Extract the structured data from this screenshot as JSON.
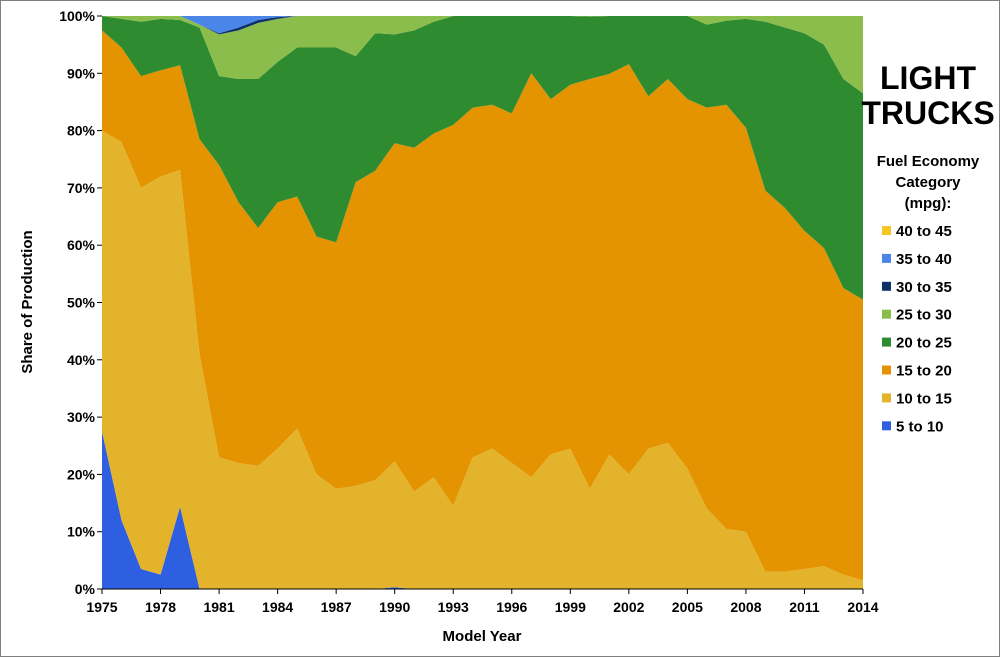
{
  "chart_data": {
    "type": "area",
    "stacked": "percent",
    "title": "LIGHT TRUCKS",
    "xlabel": "Model Year",
    "ylabel": "Share of Production",
    "legend_title": "Fuel Economy Category (mpg):",
    "legend_position": "right",
    "ylim": [
      0,
      100
    ],
    "xlim": [
      1975,
      2014
    ],
    "y_ticks": [
      "0%",
      "10%",
      "20%",
      "30%",
      "40%",
      "50%",
      "60%",
      "70%",
      "80%",
      "90%",
      "100%"
    ],
    "x_ticks": [
      "1975",
      "1978",
      "1981",
      "1984",
      "1987",
      "1990",
      "1993",
      "1996",
      "1999",
      "2002",
      "2005",
      "2008",
      "2011",
      "2014"
    ],
    "x": [
      1975,
      1976,
      1977,
      1978,
      1979,
      1980,
      1981,
      1982,
      1983,
      1984,
      1985,
      1986,
      1987,
      1988,
      1989,
      1990,
      1991,
      1992,
      1993,
      1994,
      1995,
      1996,
      1997,
      1998,
      1999,
      2000,
      2001,
      2002,
      2003,
      2004,
      2005,
      2006,
      2007,
      2008,
      2009,
      2010,
      2011,
      2012,
      2013,
      2014
    ],
    "series": [
      {
        "name": "5 to 10",
        "color": "#2e5fe0",
        "values": [
          27.5,
          12,
          3.5,
          2.5,
          14.5,
          0,
          0,
          0,
          0,
          0,
          0,
          0,
          0,
          0,
          0,
          0.3,
          0,
          0,
          0,
          0,
          0,
          0,
          0,
          0,
          0,
          0,
          0,
          0,
          0,
          0,
          0,
          0,
          0,
          0,
          0,
          0,
          0,
          0,
          0,
          0
        ]
      },
      {
        "name": "10 to 15",
        "color": "#e3b42b",
        "values": [
          52.5,
          66,
          66.5,
          69.5,
          59.5,
          41,
          23,
          22,
          21.5,
          24.5,
          28,
          20,
          17.5,
          18,
          19,
          22,
          17,
          19.5,
          14.5,
          23,
          24.5,
          22,
          19.5,
          23.5,
          24.5,
          17.5,
          23.5,
          20,
          24.5,
          25.5,
          21,
          14,
          10.5,
          10,
          3,
          3,
          3.5,
          4,
          2.5,
          1.5
        ]
      },
      {
        "name": "15 to 20",
        "color": "#e49400",
        "values": [
          17.5,
          16.5,
          19.5,
          18.5,
          18.5,
          37.5,
          51,
          45.5,
          41.5,
          43,
          40.5,
          41.5,
          43,
          53,
          54,
          55.5,
          60,
          60,
          66.5,
          61,
          60,
          61,
          70.5,
          62,
          63.5,
          71.5,
          66.5,
          71.5,
          61.5,
          63.5,
          64.5,
          70,
          74,
          70.5,
          66.5,
          63.5,
          59,
          55.5,
          50,
          49
        ]
      },
      {
        "name": "20 to 25",
        "color": "#2f8b30",
        "values": [
          2.5,
          5,
          9.5,
          9,
          8,
          19.5,
          15.5,
          21.5,
          26,
          24.5,
          26,
          33,
          34,
          22,
          24,
          19,
          20.5,
          19.5,
          19,
          16,
          15.5,
          17,
          10,
          14.5,
          12,
          10.9,
          10.1,
          8.4,
          14,
          11,
          14.5,
          14.5,
          14.7,
          19,
          29.5,
          31.5,
          34.5,
          35.5,
          36.5,
          36
        ]
      },
      {
        "name": "25 to 30",
        "color": "#8bbd4c",
        "values": [
          0,
          0.5,
          1,
          0.5,
          0.7,
          0.5,
          7.3,
          8.5,
          9.8,
          7.5,
          5.5,
          5.5,
          5.5,
          7,
          3,
          3.2,
          2.5,
          1,
          0,
          0,
          0,
          0,
          0,
          0,
          0,
          0.1,
          0,
          0,
          0,
          0,
          0,
          1.5,
          0.8,
          0.5,
          1,
          2,
          3,
          5,
          11,
          13.5
        ]
      },
      {
        "name": "30 to 35",
        "color": "#10306a",
        "values": [
          0,
          0,
          0,
          0,
          0,
          0,
          0.2,
          0.5,
          0.5,
          0.3,
          0,
          0,
          0,
          0,
          0,
          0,
          0,
          0,
          0,
          0,
          0,
          0,
          0,
          0,
          0,
          0,
          0,
          0,
          0,
          0,
          0,
          0,
          0,
          0,
          0,
          0,
          0,
          0,
          0,
          0
        ]
      },
      {
        "name": "35 to 40",
        "color": "#4a86e8",
        "values": [
          0,
          0,
          0,
          0,
          0,
          1.5,
          3,
          2,
          0.7,
          0.2,
          0,
          0,
          0,
          0,
          0,
          0,
          0,
          0,
          0,
          0,
          0,
          0,
          0,
          0,
          0,
          0,
          0,
          0,
          0,
          0,
          0,
          0,
          0,
          0,
          0,
          0,
          0,
          0,
          0,
          0
        ]
      },
      {
        "name": "40 to 45",
        "color": "#f6c627",
        "values": [
          0,
          0,
          0,
          0,
          0,
          0,
          0,
          0,
          0,
          0,
          0,
          0,
          0,
          0,
          0,
          0,
          0,
          0,
          0,
          0,
          0,
          0,
          0,
          0,
          0,
          0,
          0,
          0,
          0,
          0,
          0,
          0,
          0,
          0,
          0,
          0,
          0,
          0,
          0,
          0
        ]
      }
    ],
    "legend_order": [
      "40 to 45",
      "35 to 40",
      "30 to 35",
      "25 to 30",
      "20 to 25",
      "15 to 20",
      "10 to 15",
      "5 to 10"
    ]
  }
}
